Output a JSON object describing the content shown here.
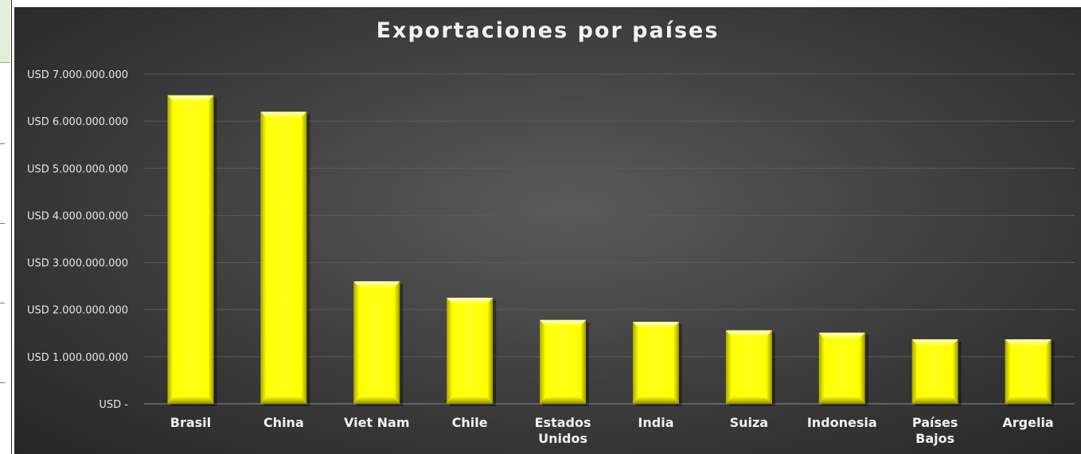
{
  "chart_data": {
    "type": "bar",
    "title": "Exportaciones por países",
    "xlabel": "",
    "ylabel": "",
    "categories": [
      [
        "Brasil"
      ],
      [
        "China"
      ],
      [
        "Viet Nam"
      ],
      [
        "Chile"
      ],
      [
        "Estados",
        "Unidos"
      ],
      [
        "India"
      ],
      [
        "Suiza"
      ],
      [
        "Indonesia"
      ],
      [
        "Países",
        "Bajos"
      ],
      [
        "Argelia"
      ]
    ],
    "values": [
      6550000000,
      6200000000,
      2600000000,
      2250000000,
      1780000000,
      1740000000,
      1560000000,
      1510000000,
      1370000000,
      1370000000
    ],
    "ylim": [
      0,
      7000000000
    ],
    "yticks": [
      {
        "value": 0,
        "label": "USD -"
      },
      {
        "value": 1000000000,
        "label": "USD 1.000.000.000"
      },
      {
        "value": 2000000000,
        "label": "USD 2.000.000.000"
      },
      {
        "value": 3000000000,
        "label": "USD 3.000.000.000"
      },
      {
        "value": 4000000000,
        "label": "USD 4.000.000.000"
      },
      {
        "value": 5000000000,
        "label": "USD 5.000.000.000"
      },
      {
        "value": 6000000000,
        "label": "USD 6.000.000.000"
      },
      {
        "value": 7000000000,
        "label": "USD 7.000.000.000"
      }
    ],
    "grid": true,
    "legend": "none",
    "colors": {
      "bar": "#ffff00",
      "bar_dark": "#c8c800",
      "bar_light": "#ffff99",
      "gridline": "#5a5a5a",
      "title": "#f2f2f2",
      "label": "#e6e6e6"
    }
  }
}
